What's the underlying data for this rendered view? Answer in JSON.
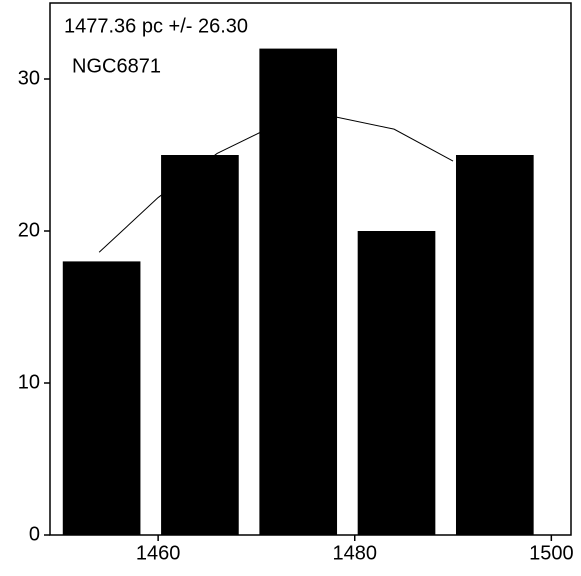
{
  "chart_data": {
    "type": "histogram",
    "annotations": [
      "1477.36 pc +/- 26.30",
      "NGC6871"
    ],
    "bins": [
      1449,
      1459,
      1469,
      1479,
      1489,
      1499
    ],
    "values": [
      18,
      25,
      32,
      20,
      25
    ],
    "color": "#000000",
    "fit": {
      "x": [
        1454,
        1460,
        1466,
        1472,
        1477.36,
        1484,
        1490
      ],
      "values": [
        18.6,
        22.2,
        25.1,
        27.0,
        27.6,
        26.7,
        24.6
      ],
      "color": "#000000"
    },
    "xlim": [
      1449,
      1502
    ],
    "xticks": [
      1460,
      1480,
      1500
    ],
    "ylim": [
      0,
      35
    ],
    "yticks": [
      0,
      10,
      20,
      30
    ]
  }
}
